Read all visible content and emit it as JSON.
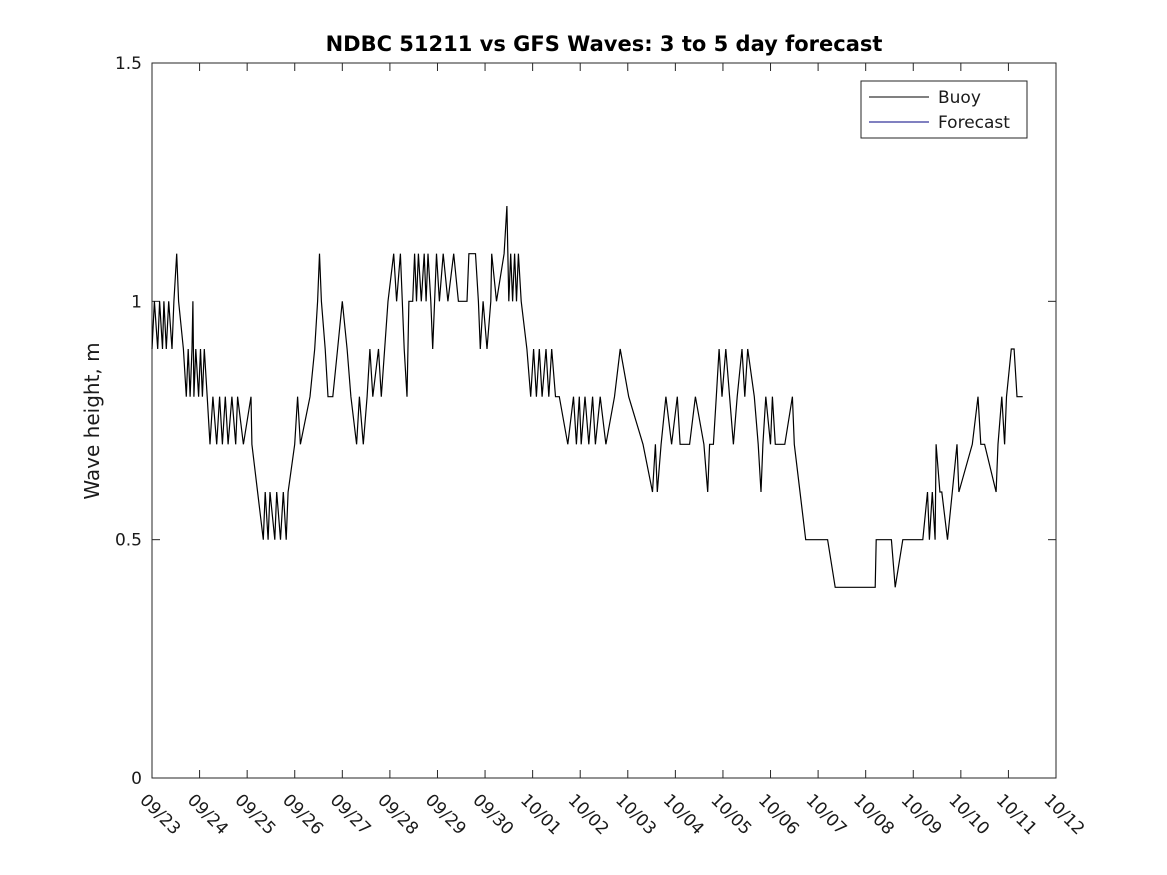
{
  "chart_data": {
    "type": "line",
    "title": "NDBC 51211 vs GFS Waves: 3 to 5 day forecast",
    "xlabel": "",
    "ylabel": "Wave height, m",
    "x_tick_labels": [
      "09/23",
      "09/24",
      "09/25",
      "09/26",
      "09/27",
      "09/28",
      "09/29",
      "09/30",
      "10/01",
      "10/02",
      "10/03",
      "10/04",
      "10/05",
      "10/06",
      "10/07",
      "10/08",
      "10/09",
      "10/10",
      "10/11",
      "10/12"
    ],
    "xlim": [
      "09/23",
      "10/12"
    ],
    "ylim": [
      0,
      1.5
    ],
    "y_ticks": [
      0,
      0.5,
      1,
      1.5
    ],
    "y_tick_labels": [
      "0",
      "0.5",
      "1",
      "1.5"
    ],
    "grid": false,
    "legend_position": "top-right",
    "series": [
      {
        "name": "Buoy",
        "color": "#000000",
        "x_unit": "days after 09/23",
        "points": [
          [
            0.0,
            0.9
          ],
          [
            0.05,
            1.0
          ],
          [
            0.12,
            0.9
          ],
          [
            0.16,
            1.0
          ],
          [
            0.22,
            0.9
          ],
          [
            0.25,
            1.0
          ],
          [
            0.3,
            0.9
          ],
          [
            0.35,
            1.0
          ],
          [
            0.42,
            0.9
          ],
          [
            0.46,
            1.0
          ],
          [
            0.52,
            1.1
          ],
          [
            0.56,
            1.0
          ],
          [
            0.66,
            0.9
          ],
          [
            0.72,
            0.8
          ],
          [
            0.76,
            0.9
          ],
          [
            0.8,
            0.8
          ],
          [
            0.84,
            0.9
          ],
          [
            0.86,
            1.0
          ],
          [
            0.88,
            0.8
          ],
          [
            0.92,
            0.9
          ],
          [
            0.98,
            0.8
          ],
          [
            1.02,
            0.9
          ],
          [
            1.06,
            0.8
          ],
          [
            1.1,
            0.9
          ],
          [
            1.16,
            0.8
          ],
          [
            1.22,
            0.7
          ],
          [
            1.28,
            0.8
          ],
          [
            1.36,
            0.7
          ],
          [
            1.42,
            0.8
          ],
          [
            1.48,
            0.7
          ],
          [
            1.54,
            0.8
          ],
          [
            1.6,
            0.7
          ],
          [
            1.68,
            0.8
          ],
          [
            1.76,
            0.7
          ],
          [
            1.8,
            0.8
          ],
          [
            1.92,
            0.7
          ],
          [
            2.08,
            0.8
          ],
          [
            2.1,
            0.7
          ],
          [
            2.22,
            0.6
          ],
          [
            2.34,
            0.5
          ],
          [
            2.38,
            0.6
          ],
          [
            2.44,
            0.5
          ],
          [
            2.48,
            0.6
          ],
          [
            2.58,
            0.5
          ],
          [
            2.62,
            0.6
          ],
          [
            2.7,
            0.5
          ],
          [
            2.76,
            0.6
          ],
          [
            2.82,
            0.5
          ],
          [
            2.86,
            0.6
          ],
          [
            3.0,
            0.7
          ],
          [
            3.06,
            0.8
          ],
          [
            3.12,
            0.7
          ],
          [
            3.32,
            0.8
          ],
          [
            3.42,
            0.9
          ],
          [
            3.48,
            1.0
          ],
          [
            3.52,
            1.1
          ],
          [
            3.56,
            1.0
          ],
          [
            3.64,
            0.9
          ],
          [
            3.7,
            0.8
          ],
          [
            3.8,
            0.8
          ],
          [
            3.9,
            0.9
          ],
          [
            4.0,
            1.0
          ],
          [
            4.1,
            0.9
          ],
          [
            4.18,
            0.8
          ],
          [
            4.3,
            0.7
          ],
          [
            4.36,
            0.8
          ],
          [
            4.44,
            0.7
          ],
          [
            4.52,
            0.8
          ],
          [
            4.58,
            0.9
          ],
          [
            4.64,
            0.8
          ],
          [
            4.76,
            0.9
          ],
          [
            4.82,
            0.8
          ],
          [
            4.96,
            1.0
          ],
          [
            5.08,
            1.1
          ],
          [
            5.14,
            1.0
          ],
          [
            5.22,
            1.1
          ],
          [
            5.3,
            0.9
          ],
          [
            5.36,
            0.8
          ],
          [
            5.4,
            1.0
          ],
          [
            5.48,
            1.0
          ],
          [
            5.52,
            1.1
          ],
          [
            5.56,
            1.0
          ],
          [
            5.6,
            1.1
          ],
          [
            5.66,
            1.0
          ],
          [
            5.72,
            1.1
          ],
          [
            5.76,
            1.0
          ],
          [
            5.8,
            1.1
          ],
          [
            5.86,
            1.0
          ],
          [
            5.9,
            0.9
          ],
          [
            5.94,
            1.0
          ],
          [
            5.98,
            1.1
          ],
          [
            6.04,
            1.0
          ],
          [
            6.12,
            1.1
          ],
          [
            6.22,
            1.0
          ],
          [
            6.34,
            1.1
          ],
          [
            6.44,
            1.0
          ],
          [
            6.56,
            1.0
          ],
          [
            6.62,
            1.0
          ],
          [
            6.66,
            1.1
          ],
          [
            6.8,
            1.1
          ],
          [
            6.86,
            1.0
          ],
          [
            6.9,
            0.9
          ],
          [
            6.96,
            1.0
          ],
          [
            7.04,
            0.9
          ],
          [
            7.12,
            1.0
          ],
          [
            7.14,
            1.1
          ],
          [
            7.24,
            1.0
          ],
          [
            7.4,
            1.1
          ],
          [
            7.46,
            1.2
          ],
          [
            7.5,
            1.0
          ],
          [
            7.54,
            1.1
          ],
          [
            7.58,
            1.0
          ],
          [
            7.62,
            1.1
          ],
          [
            7.66,
            1.0
          ],
          [
            7.7,
            1.1
          ],
          [
            7.76,
            1.0
          ],
          [
            7.88,
            0.9
          ],
          [
            7.96,
            0.8
          ],
          [
            8.02,
            0.9
          ],
          [
            8.08,
            0.8
          ],
          [
            8.14,
            0.9
          ],
          [
            8.2,
            0.8
          ],
          [
            8.28,
            0.9
          ],
          [
            8.34,
            0.8
          ],
          [
            8.4,
            0.9
          ],
          [
            8.48,
            0.8
          ],
          [
            8.56,
            0.8
          ],
          [
            8.74,
            0.7
          ],
          [
            8.86,
            0.8
          ],
          [
            8.92,
            0.7
          ],
          [
            8.98,
            0.8
          ],
          [
            9.02,
            0.7
          ],
          [
            9.1,
            0.8
          ],
          [
            9.18,
            0.7
          ],
          [
            9.26,
            0.8
          ],
          [
            9.32,
            0.7
          ],
          [
            9.42,
            0.8
          ],
          [
            9.54,
            0.7
          ],
          [
            9.72,
            0.8
          ],
          [
            9.84,
            0.9
          ],
          [
            10.02,
            0.8
          ],
          [
            10.32,
            0.7
          ],
          [
            10.52,
            0.6
          ],
          [
            10.58,
            0.7
          ],
          [
            10.62,
            0.6
          ],
          [
            10.7,
            0.7
          ],
          [
            10.8,
            0.8
          ],
          [
            10.92,
            0.7
          ],
          [
            11.04,
            0.8
          ],
          [
            11.1,
            0.7
          ],
          [
            11.3,
            0.7
          ],
          [
            11.42,
            0.8
          ],
          [
            11.6,
            0.7
          ],
          [
            11.68,
            0.6
          ],
          [
            11.72,
            0.7
          ],
          [
            11.8,
            0.7
          ],
          [
            11.86,
            0.8
          ],
          [
            11.92,
            0.9
          ],
          [
            11.98,
            0.8
          ],
          [
            12.06,
            0.9
          ],
          [
            12.14,
            0.8
          ],
          [
            12.22,
            0.7
          ],
          [
            12.3,
            0.8
          ],
          [
            12.4,
            0.9
          ],
          [
            12.46,
            0.8
          ],
          [
            12.52,
            0.9
          ],
          [
            12.66,
            0.8
          ],
          [
            12.74,
            0.7
          ],
          [
            12.8,
            0.6
          ],
          [
            12.84,
            0.7
          ],
          [
            12.9,
            0.8
          ],
          [
            13.0,
            0.7
          ],
          [
            13.04,
            0.8
          ],
          [
            13.1,
            0.7
          ],
          [
            13.2,
            0.7
          ],
          [
            13.3,
            0.7
          ],
          [
            13.46,
            0.8
          ],
          [
            13.5,
            0.7
          ],
          [
            13.62,
            0.6
          ],
          [
            13.74,
            0.5
          ],
          [
            14.0,
            0.5
          ],
          [
            14.2,
            0.5
          ],
          [
            14.36,
            0.4
          ],
          [
            15.0,
            0.4
          ],
          [
            15.2,
            0.4
          ],
          [
            15.22,
            0.5
          ],
          [
            15.54,
            0.5
          ],
          [
            15.62,
            0.4
          ],
          [
            15.78,
            0.5
          ],
          [
            16.0,
            0.5
          ],
          [
            16.2,
            0.5
          ],
          [
            16.3,
            0.6
          ],
          [
            16.34,
            0.5
          ],
          [
            16.4,
            0.6
          ],
          [
            16.46,
            0.5
          ],
          [
            16.48,
            0.7
          ],
          [
            16.56,
            0.6
          ],
          [
            16.6,
            0.6
          ],
          [
            16.72,
            0.5
          ],
          [
            16.82,
            0.6
          ],
          [
            16.92,
            0.7
          ],
          [
            16.96,
            0.6
          ],
          [
            17.24,
            0.7
          ],
          [
            17.36,
            0.8
          ],
          [
            17.42,
            0.7
          ],
          [
            17.5,
            0.7
          ],
          [
            17.74,
            0.6
          ],
          [
            17.78,
            0.7
          ],
          [
            17.86,
            0.8
          ],
          [
            17.92,
            0.7
          ],
          [
            17.96,
            0.8
          ],
          [
            18.06,
            0.9
          ],
          [
            18.12,
            0.9
          ],
          [
            18.18,
            0.8
          ],
          [
            18.3,
            0.8
          ]
        ]
      },
      {
        "name": "Forecast",
        "color": "#000080",
        "points": []
      }
    ]
  }
}
